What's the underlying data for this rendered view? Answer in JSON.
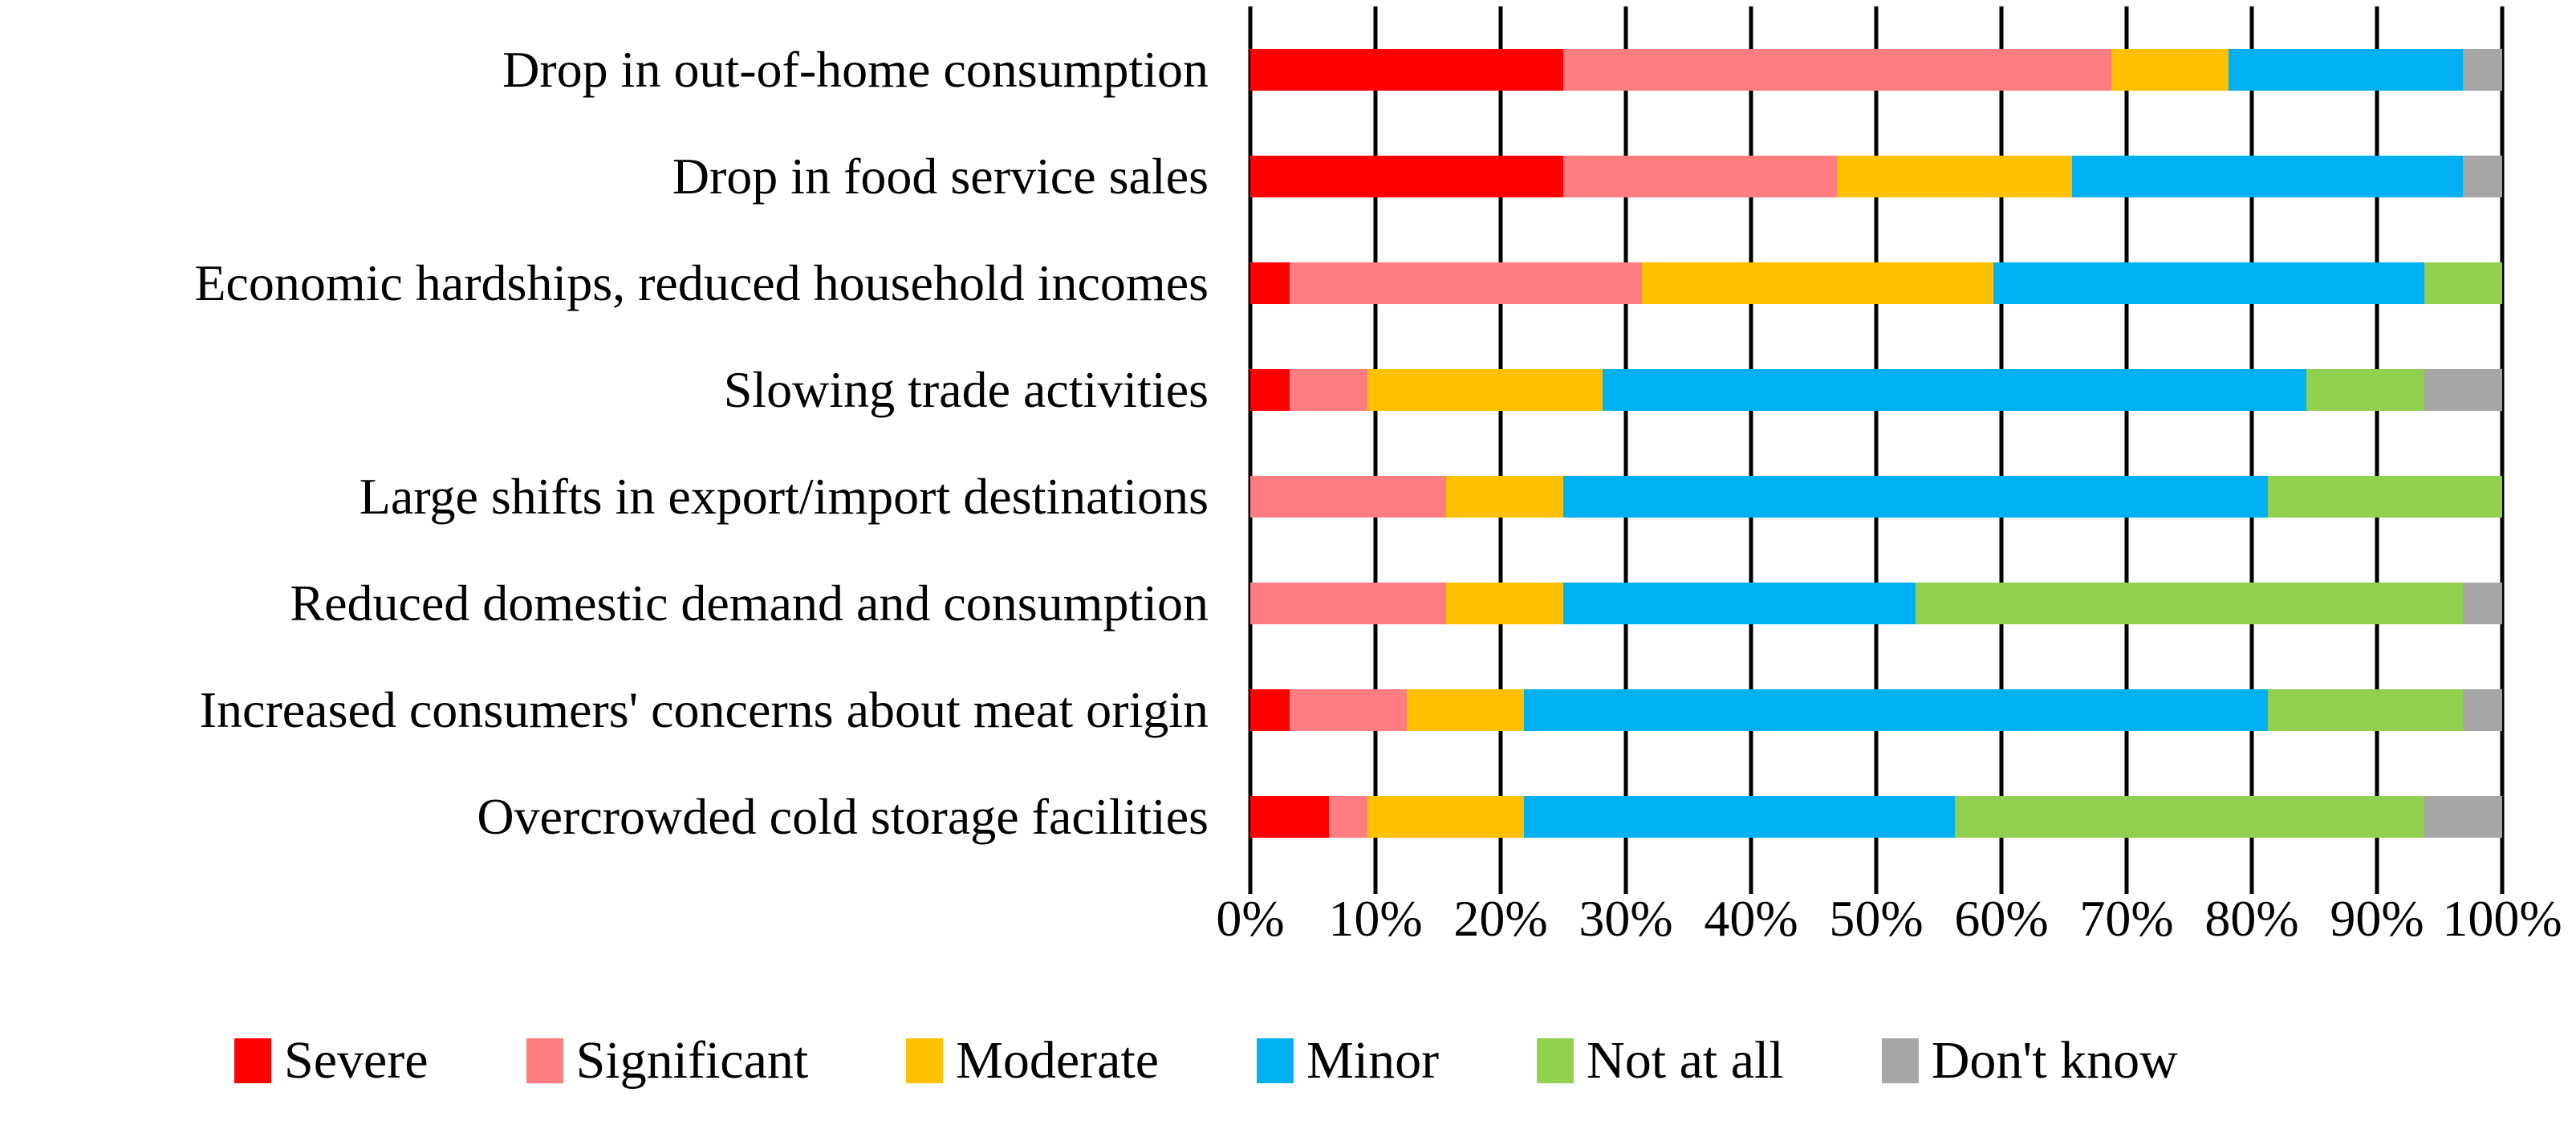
{
  "chart_data": {
    "type": "bar",
    "orientation": "horizontal",
    "stacked": true,
    "title": "",
    "xlabel": "",
    "ylabel": "",
    "grid": "vertical",
    "legend_position": "bottom",
    "x_axis": {
      "min": 0,
      "max": 100,
      "tick_step": 10,
      "ticks": [
        "0%",
        "10%",
        "20%",
        "30%",
        "40%",
        "50%",
        "60%",
        "70%",
        "80%",
        "90%",
        "100%"
      ]
    },
    "categories": [
      "Drop in out-of-home consumption",
      "Drop in food service sales",
      "Economic hardships, reduced household incomes",
      "Slowing trade activities",
      "Large shifts in export/import destinations",
      "Reduced domestic demand and consumption",
      "Increased consumers' concerns about meat origin",
      "Overcrowded cold storage facilities"
    ],
    "series": [
      {
        "name": "Severe",
        "color": "#FE0000",
        "values": [
          25,
          25,
          3.125,
          3.125,
          0,
          0,
          3.125,
          6.25
        ]
      },
      {
        "name": "Significant",
        "color": "#FF7C80",
        "values": [
          43.75,
          21.875,
          28.125,
          6.25,
          15.625,
          15.625,
          9.375,
          3.125
        ]
      },
      {
        "name": "Moderate",
        "color": "#FFC000",
        "values": [
          9.375,
          18.75,
          28.125,
          18.75,
          9.375,
          9.375,
          9.375,
          12.5
        ]
      },
      {
        "name": "Minor",
        "color": "#00B0F0",
        "values": [
          18.75,
          31.25,
          34.375,
          56.25,
          56.25,
          28.125,
          59.375,
          34.375
        ]
      },
      {
        "name": "Not at all",
        "color": "#92D050",
        "values": [
          0,
          0,
          6.25,
          9.375,
          18.75,
          43.75,
          15.625,
          37.5
        ]
      },
      {
        "name": "Don't know",
        "color": "#A6A6A6",
        "values": [
          3.125,
          3.125,
          0,
          6.25,
          0,
          3.125,
          3.125,
          6.25
        ]
      }
    ],
    "gridline_color": "#000000",
    "background_color": "#FFFFFF"
  }
}
